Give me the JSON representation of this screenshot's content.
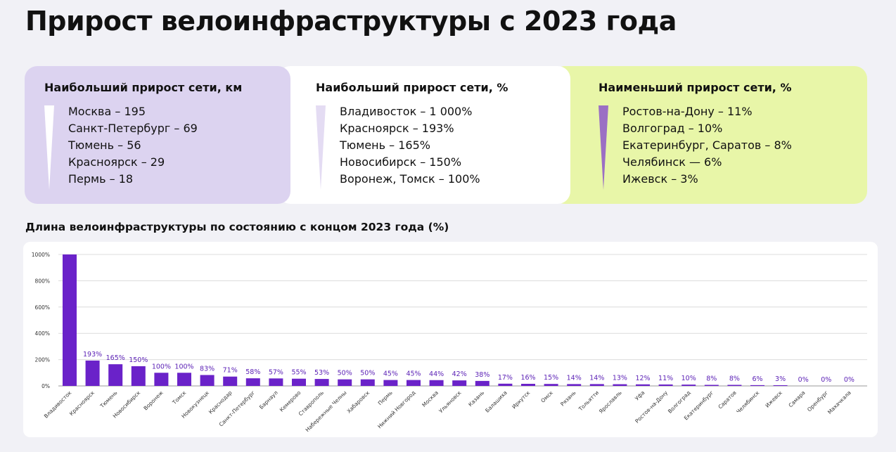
{
  "title": "Прирост велоинфраструктуры с 2023 года",
  "cards": [
    {
      "title": "Наибольший прирост сети, км",
      "items": [
        "Москва – 195",
        "Санкт-Петербург – 69",
        "Тюмень – 56",
        "Красноярск – 29",
        "Пермь – 18"
      ]
    },
    {
      "title": "Наибольший прирост сети, %",
      "items": [
        "Владивосток – 1 000%",
        "Красноярск – 193%",
        "Тюмень – 165%",
        "Новосибирск – 150%",
        "Воронеж, Томск – 100%"
      ]
    },
    {
      "title": "Наименьший прирост сети, %",
      "items": [
        "Ростов-на-Дону – 11%",
        "Волгоград – 10%",
        "Екатеринбург, Саратов – 8%",
        "Челябинск — 6%",
        "Ижевск – 3%"
      ]
    }
  ],
  "colors": {
    "bar": "#6a22c9",
    "label": "#5a1fb5",
    "card1": "#dcd3f0",
    "card2": "#ffffff",
    "card3": "#e8f6a8",
    "wedge3": "#9b6fc4"
  },
  "chart_data": {
    "type": "bar",
    "title": "Длина велоинфраструктуры по состоянию с концом 2023 года (%)",
    "ylim": [
      0,
      1000
    ],
    "yticks": [
      0,
      200,
      400,
      600,
      800,
      1000
    ],
    "ytick_labels": [
      "0%",
      "200%",
      "400%",
      "600%",
      "800%",
      "1000%"
    ],
    "grid": true,
    "categories": [
      "Владивосток",
      "Красноярск",
      "Тюмень",
      "Новосибирск",
      "Воронеж",
      "Томск",
      "Новокузнецк",
      "Краснодар",
      "Санкт-Петербург",
      "Барнаул",
      "Кемерово",
      "Ставрополь",
      "Набережные Челны",
      "Хабаровск",
      "Пермь",
      "Нижний Новгород",
      "Москва",
      "Ульяновск",
      "Казань",
      "Балашиха",
      "Иркутск",
      "Омск",
      "Рязань",
      "Тольятти",
      "Ярославль",
      "Уфа",
      "Ростов-на-Дону",
      "Волгоград",
      "Екатеринбург",
      "Саратов",
      "Челябинск",
      "Ижевск",
      "Самара",
      "Оренбург",
      "Махачкала"
    ],
    "values": [
      1000,
      193,
      165,
      150,
      100,
      100,
      83,
      71,
      58,
      57,
      55,
      53,
      50,
      50,
      45,
      45,
      44,
      42,
      38,
      17,
      16,
      15,
      14,
      14,
      13,
      12,
      11,
      10,
      8,
      8,
      6,
      3,
      0,
      0,
      0
    ],
    "data_labels": [
      "",
      "193%",
      "165%",
      "150%",
      "100%",
      "100%",
      "83%",
      "71%",
      "58%",
      "57%",
      "55%",
      "53%",
      "50%",
      "50%",
      "45%",
      "45%",
      "44%",
      "42%",
      "38%",
      "17%",
      "16%",
      "15%",
      "14%",
      "14%",
      "13%",
      "12%",
      "11%",
      "10%",
      "8%",
      "8%",
      "6%",
      "3%",
      "0%",
      "0%",
      "0%"
    ]
  }
}
